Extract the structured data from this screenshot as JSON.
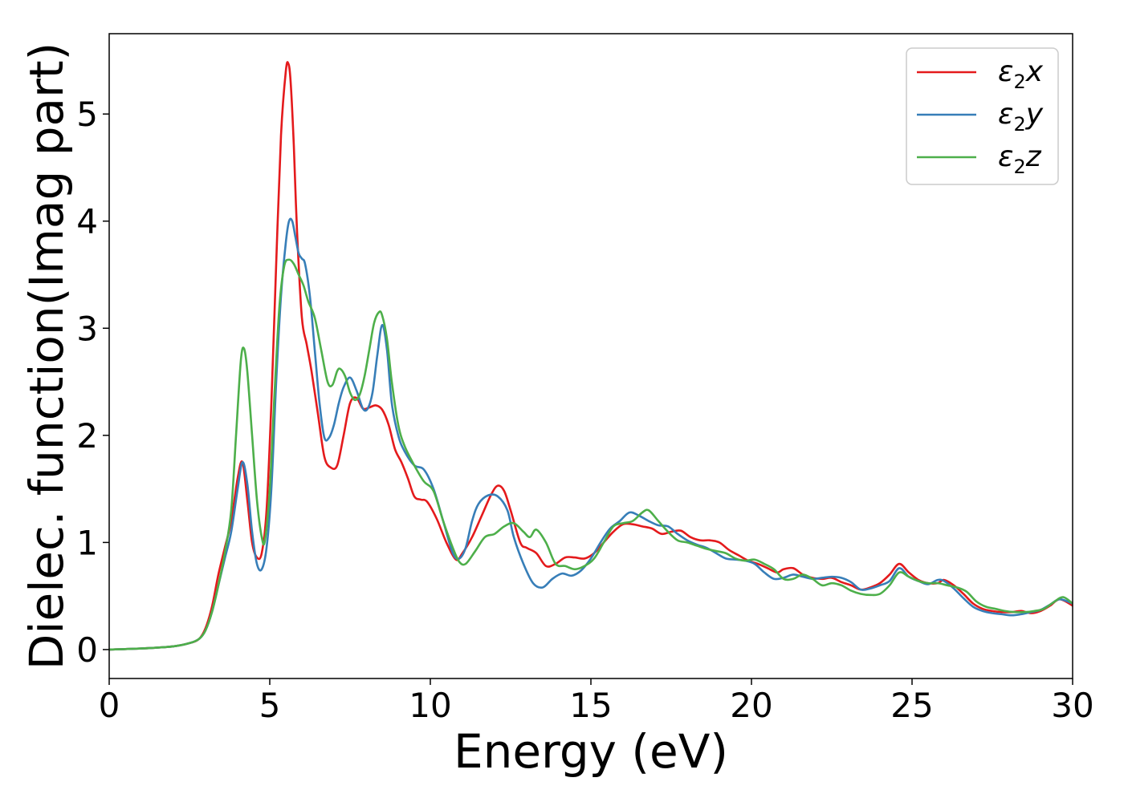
{
  "chart_data": {
    "type": "line",
    "title": "",
    "xlabel": "Energy (eV)",
    "ylabel": "Dielec. function(Imag part)",
    "xlim": [
      0,
      30
    ],
    "ylim": [
      -0.27,
      5.75
    ],
    "xticks": [
      0,
      5,
      10,
      15,
      20,
      25,
      30
    ],
    "yticks": [
      0,
      1,
      2,
      3,
      4,
      5
    ],
    "grid": false,
    "legend_position": "top-right",
    "series": [
      {
        "name": "ε2x",
        "legend_main": "ε",
        "legend_sub": "2",
        "legend_tail": "x",
        "color": "#e41a1c",
        "x": [
          0,
          1,
          2,
          2.5,
          2.8,
          3.0,
          3.2,
          3.4,
          3.6,
          3.8,
          4.0,
          4.15,
          4.3,
          4.45,
          4.6,
          4.75,
          4.9,
          5.05,
          5.2,
          5.35,
          5.5,
          5.58,
          5.65,
          5.75,
          5.85,
          6.0,
          6.15,
          6.3,
          6.5,
          6.7,
          6.9,
          7.1,
          7.3,
          7.5,
          7.7,
          7.9,
          8.1,
          8.3,
          8.5,
          8.7,
          8.9,
          9.1,
          9.3,
          9.5,
          9.7,
          9.9,
          10.2,
          10.5,
          10.8,
          11.0,
          11.3,
          11.6,
          11.9,
          12.1,
          12.3,
          12.5,
          12.8,
          13.0,
          13.3,
          13.6,
          13.9,
          14.2,
          14.5,
          14.8,
          15.1,
          15.4,
          15.7,
          16.0,
          16.3,
          16.6,
          16.9,
          17.2,
          17.5,
          17.8,
          18.1,
          18.4,
          18.7,
          19.0,
          19.3,
          19.6,
          19.9,
          20.2,
          20.5,
          20.8,
          21.0,
          21.3,
          21.6,
          21.9,
          22.2,
          22.5,
          22.8,
          23.1,
          23.4,
          23.7,
          24.0,
          24.3,
          24.6,
          24.9,
          25.2,
          25.5,
          25.8,
          26.0,
          26.3,
          26.6,
          26.9,
          27.2,
          27.5,
          27.8,
          28.1,
          28.4,
          28.7,
          29.0,
          29.3,
          29.6,
          30.0
        ],
        "y": [
          0.0,
          0.01,
          0.03,
          0.06,
          0.1,
          0.2,
          0.4,
          0.7,
          0.95,
          1.2,
          1.6,
          1.75,
          1.4,
          1.0,
          0.86,
          0.9,
          1.3,
          2.3,
          3.6,
          4.8,
          5.4,
          5.47,
          5.3,
          4.7,
          3.9,
          3.1,
          2.85,
          2.6,
          2.2,
          1.8,
          1.7,
          1.72,
          2.0,
          2.3,
          2.35,
          2.25,
          2.26,
          2.28,
          2.24,
          2.1,
          1.87,
          1.75,
          1.6,
          1.43,
          1.4,
          1.38,
          1.22,
          1.0,
          0.84,
          0.9,
          1.05,
          1.25,
          1.45,
          1.53,
          1.48,
          1.3,
          1.0,
          0.95,
          0.9,
          0.78,
          0.8,
          0.86,
          0.86,
          0.85,
          0.9,
          1.0,
          1.1,
          1.17,
          1.17,
          1.15,
          1.13,
          1.08,
          1.1,
          1.11,
          1.05,
          1.02,
          1.02,
          1.0,
          0.93,
          0.88,
          0.83,
          0.8,
          0.76,
          0.72,
          0.75,
          0.76,
          0.7,
          0.67,
          0.66,
          0.67,
          0.63,
          0.6,
          0.56,
          0.58,
          0.62,
          0.7,
          0.8,
          0.72,
          0.65,
          0.62,
          0.62,
          0.65,
          0.6,
          0.52,
          0.43,
          0.38,
          0.36,
          0.35,
          0.35,
          0.36,
          0.34,
          0.36,
          0.41,
          0.47,
          0.41
        ]
      },
      {
        "name": "ε2y",
        "legend_main": "ε",
        "legend_sub": "2",
        "legend_tail": "y",
        "color": "#377eb8",
        "x": [
          0,
          1,
          2,
          2.5,
          2.8,
          3.0,
          3.2,
          3.4,
          3.6,
          3.8,
          4.0,
          4.15,
          4.3,
          4.45,
          4.6,
          4.75,
          4.9,
          5.05,
          5.2,
          5.35,
          5.5,
          5.6,
          5.7,
          5.8,
          5.9,
          6.0,
          6.1,
          6.25,
          6.4,
          6.55,
          6.7,
          6.85,
          7.0,
          7.15,
          7.3,
          7.5,
          7.7,
          7.9,
          8.05,
          8.2,
          8.35,
          8.5,
          8.65,
          8.8,
          9.0,
          9.2,
          9.5,
          9.8,
          10.1,
          10.4,
          10.7,
          10.9,
          11.1,
          11.3,
          11.5,
          11.8,
          12.1,
          12.4,
          12.6,
          12.9,
          13.2,
          13.5,
          13.8,
          14.1,
          14.4,
          14.7,
          15.0,
          15.3,
          15.6,
          15.9,
          16.2,
          16.5,
          16.8,
          17.1,
          17.4,
          17.7,
          18.0,
          18.3,
          18.6,
          18.9,
          19.2,
          19.5,
          19.8,
          20.1,
          20.4,
          20.7,
          21.0,
          21.3,
          21.6,
          21.9,
          22.2,
          22.5,
          22.8,
          23.1,
          23.4,
          23.7,
          24.0,
          24.3,
          24.6,
          24.9,
          25.2,
          25.5,
          25.8,
          26.0,
          26.3,
          26.6,
          26.9,
          27.2,
          27.5,
          27.8,
          28.1,
          28.4,
          28.7,
          29.0,
          29.3,
          29.6,
          30.0
        ],
        "y": [
          0.0,
          0.01,
          0.03,
          0.06,
          0.1,
          0.18,
          0.35,
          0.6,
          0.85,
          1.1,
          1.5,
          1.75,
          1.55,
          1.1,
          0.8,
          0.75,
          0.95,
          1.5,
          2.5,
          3.3,
          3.8,
          4.0,
          4.0,
          3.85,
          3.7,
          3.65,
          3.6,
          3.3,
          2.8,
          2.3,
          1.98,
          1.98,
          2.1,
          2.3,
          2.45,
          2.54,
          2.42,
          2.25,
          2.25,
          2.4,
          2.75,
          3.03,
          2.8,
          2.3,
          2.0,
          1.85,
          1.72,
          1.68,
          1.5,
          1.2,
          0.9,
          0.85,
          0.95,
          1.2,
          1.36,
          1.44,
          1.43,
          1.3,
          1.05,
          0.8,
          0.62,
          0.58,
          0.66,
          0.71,
          0.69,
          0.74,
          0.85,
          1.0,
          1.13,
          1.2,
          1.28,
          1.25,
          1.2,
          1.16,
          1.15,
          1.08,
          1.02,
          0.98,
          0.95,
          0.9,
          0.85,
          0.84,
          0.83,
          0.8,
          0.72,
          0.66,
          0.67,
          0.7,
          0.68,
          0.66,
          0.67,
          0.68,
          0.67,
          0.63,
          0.56,
          0.57,
          0.6,
          0.64,
          0.76,
          0.68,
          0.64,
          0.61,
          0.65,
          0.64,
          0.57,
          0.48,
          0.4,
          0.36,
          0.34,
          0.33,
          0.32,
          0.33,
          0.35,
          0.37,
          0.42,
          0.47,
          0.43
        ]
      },
      {
        "name": "ε2z",
        "legend_main": "ε",
        "legend_sub": "2",
        "legend_tail": "z",
        "color": "#4daf4a",
        "x": [
          0,
          1,
          2,
          2.5,
          2.8,
          3.0,
          3.2,
          3.4,
          3.6,
          3.8,
          3.95,
          4.1,
          4.2,
          4.3,
          4.45,
          4.6,
          4.75,
          4.85,
          5.0,
          5.15,
          5.3,
          5.45,
          5.6,
          5.75,
          5.9,
          6.05,
          6.2,
          6.4,
          6.6,
          6.8,
          6.95,
          7.1,
          7.2,
          7.35,
          7.5,
          7.65,
          7.8,
          7.95,
          8.1,
          8.25,
          8.4,
          8.5,
          8.65,
          8.8,
          9.0,
          9.2,
          9.5,
          9.8,
          10.1,
          10.4,
          10.7,
          10.9,
          11.1,
          11.4,
          11.7,
          12.0,
          12.3,
          12.6,
          12.9,
          13.1,
          13.3,
          13.6,
          13.9,
          14.2,
          14.5,
          14.8,
          15.1,
          15.4,
          15.7,
          16.0,
          16.3,
          16.6,
          16.8,
          17.1,
          17.4,
          17.7,
          18.0,
          18.3,
          18.6,
          18.9,
          19.2,
          19.5,
          19.8,
          20.1,
          20.4,
          20.7,
          21.0,
          21.3,
          21.6,
          21.9,
          22.2,
          22.5,
          22.8,
          23.1,
          23.4,
          23.7,
          24.0,
          24.3,
          24.6,
          24.9,
          25.2,
          25.5,
          25.8,
          26.1,
          26.4,
          26.7,
          27.0,
          27.3,
          27.6,
          27.9,
          28.2,
          28.5,
          28.8,
          29.1,
          29.4,
          29.7,
          30.0
        ],
        "y": [
          0.0,
          0.01,
          0.03,
          0.06,
          0.1,
          0.18,
          0.35,
          0.6,
          0.9,
          1.3,
          2.0,
          2.7,
          2.81,
          2.6,
          2.0,
          1.4,
          1.05,
          1.02,
          1.5,
          2.4,
          3.2,
          3.58,
          3.64,
          3.6,
          3.5,
          3.4,
          3.25,
          3.1,
          2.8,
          2.5,
          2.47,
          2.6,
          2.62,
          2.55,
          2.4,
          2.33,
          2.38,
          2.55,
          2.8,
          3.05,
          3.15,
          3.12,
          2.9,
          2.5,
          2.1,
          1.9,
          1.72,
          1.57,
          1.48,
          1.2,
          0.95,
          0.82,
          0.8,
          0.92,
          1.05,
          1.08,
          1.15,
          1.18,
          1.1,
          1.05,
          1.12,
          1.0,
          0.8,
          0.78,
          0.75,
          0.78,
          0.85,
          1.0,
          1.15,
          1.18,
          1.2,
          1.28,
          1.3,
          1.2,
          1.1,
          1.02,
          1.0,
          0.97,
          0.94,
          0.92,
          0.9,
          0.85,
          0.83,
          0.84,
          0.8,
          0.75,
          0.66,
          0.66,
          0.7,
          0.66,
          0.6,
          0.62,
          0.6,
          0.55,
          0.52,
          0.51,
          0.52,
          0.6,
          0.72,
          0.68,
          0.64,
          0.62,
          0.62,
          0.6,
          0.58,
          0.54,
          0.45,
          0.4,
          0.38,
          0.36,
          0.35,
          0.35,
          0.36,
          0.38,
          0.44,
          0.49,
          0.43
        ]
      }
    ]
  }
}
